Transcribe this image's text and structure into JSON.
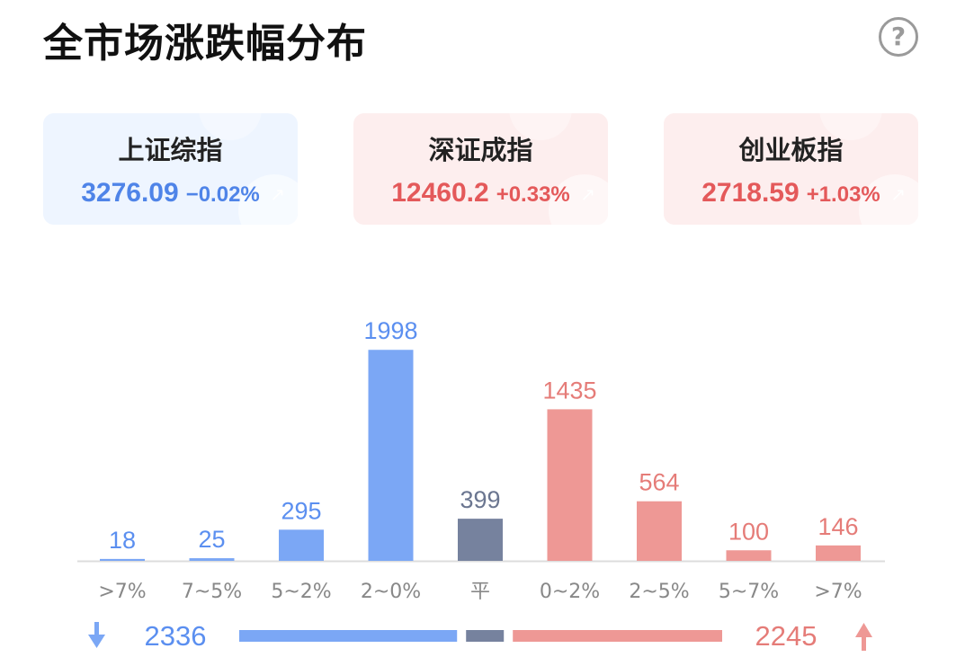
{
  "header": {
    "title": "全市场涨跌幅分布",
    "help_icon": "question-circle-icon",
    "help_glyph": "?"
  },
  "indices": [
    {
      "name": "上证综指",
      "value": "3276.09",
      "change": "−0.02%",
      "tone": "down"
    },
    {
      "name": "深证成指",
      "value": "12460.2",
      "change": "+0.33%",
      "tone": "up"
    },
    {
      "name": "创业板指",
      "value": "2718.59",
      "change": "+1.03%",
      "tone": "up"
    }
  ],
  "colors": {
    "down": "#7ba7f5",
    "flat": "#76829e",
    "up": "#ee9895",
    "down_text": "#5b8ff0",
    "flat_text": "#6b7690",
    "up_text": "#e57c78",
    "axis": "#dddddd",
    "tick_text": "#888888"
  },
  "chart_data": {
    "type": "bar",
    "categories": [
      ">7%",
      "7~5%",
      "5~2%",
      "2~0%",
      "平",
      "0~2%",
      "2~5%",
      "5~7%",
      ">7%"
    ],
    "values": [
      18,
      25,
      295,
      1998,
      399,
      1435,
      564,
      100,
      146
    ],
    "groups": [
      "down",
      "down",
      "down",
      "down",
      "flat",
      "up",
      "up",
      "up",
      "up"
    ],
    "ylim": [
      0,
      2000
    ],
    "summary": {
      "down_total": 2336,
      "flat_total": 399,
      "up_total": 2245,
      "down_icon": "arrow-down-icon",
      "up_icon": "arrow-up-icon"
    }
  }
}
